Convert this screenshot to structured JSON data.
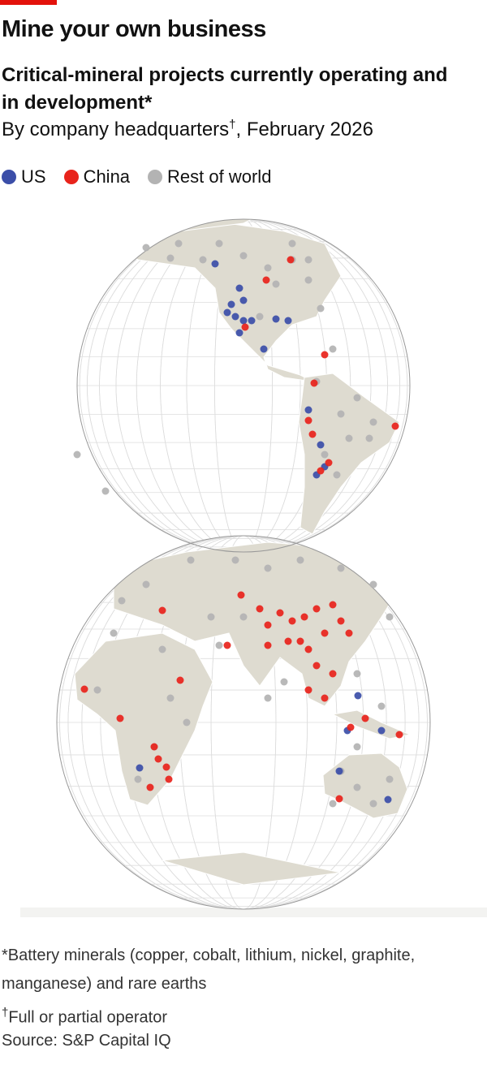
{
  "header": {
    "title": "Mine your own business",
    "subtitle": "Critical-mineral projects currently operating and in development*",
    "subtitle2": [
      "By company headquarters",
      "†",
      ", February 2026"
    ]
  },
  "legend": [
    {
      "label": "US",
      "color": "#3b4ea8"
    },
    {
      "label": "China",
      "color": "#e8231b"
    },
    {
      "label": "Rest of world",
      "color": "#b3b3b3"
    }
  ],
  "footnotes": {
    "note1": "*Battery minerals (copper, cobalt, lithium, nickel, graphite, manganese) and rare earths",
    "note2": [
      "†",
      "Full or partial operator"
    ],
    "source": "Source: S&P Capital IQ"
  }
}
